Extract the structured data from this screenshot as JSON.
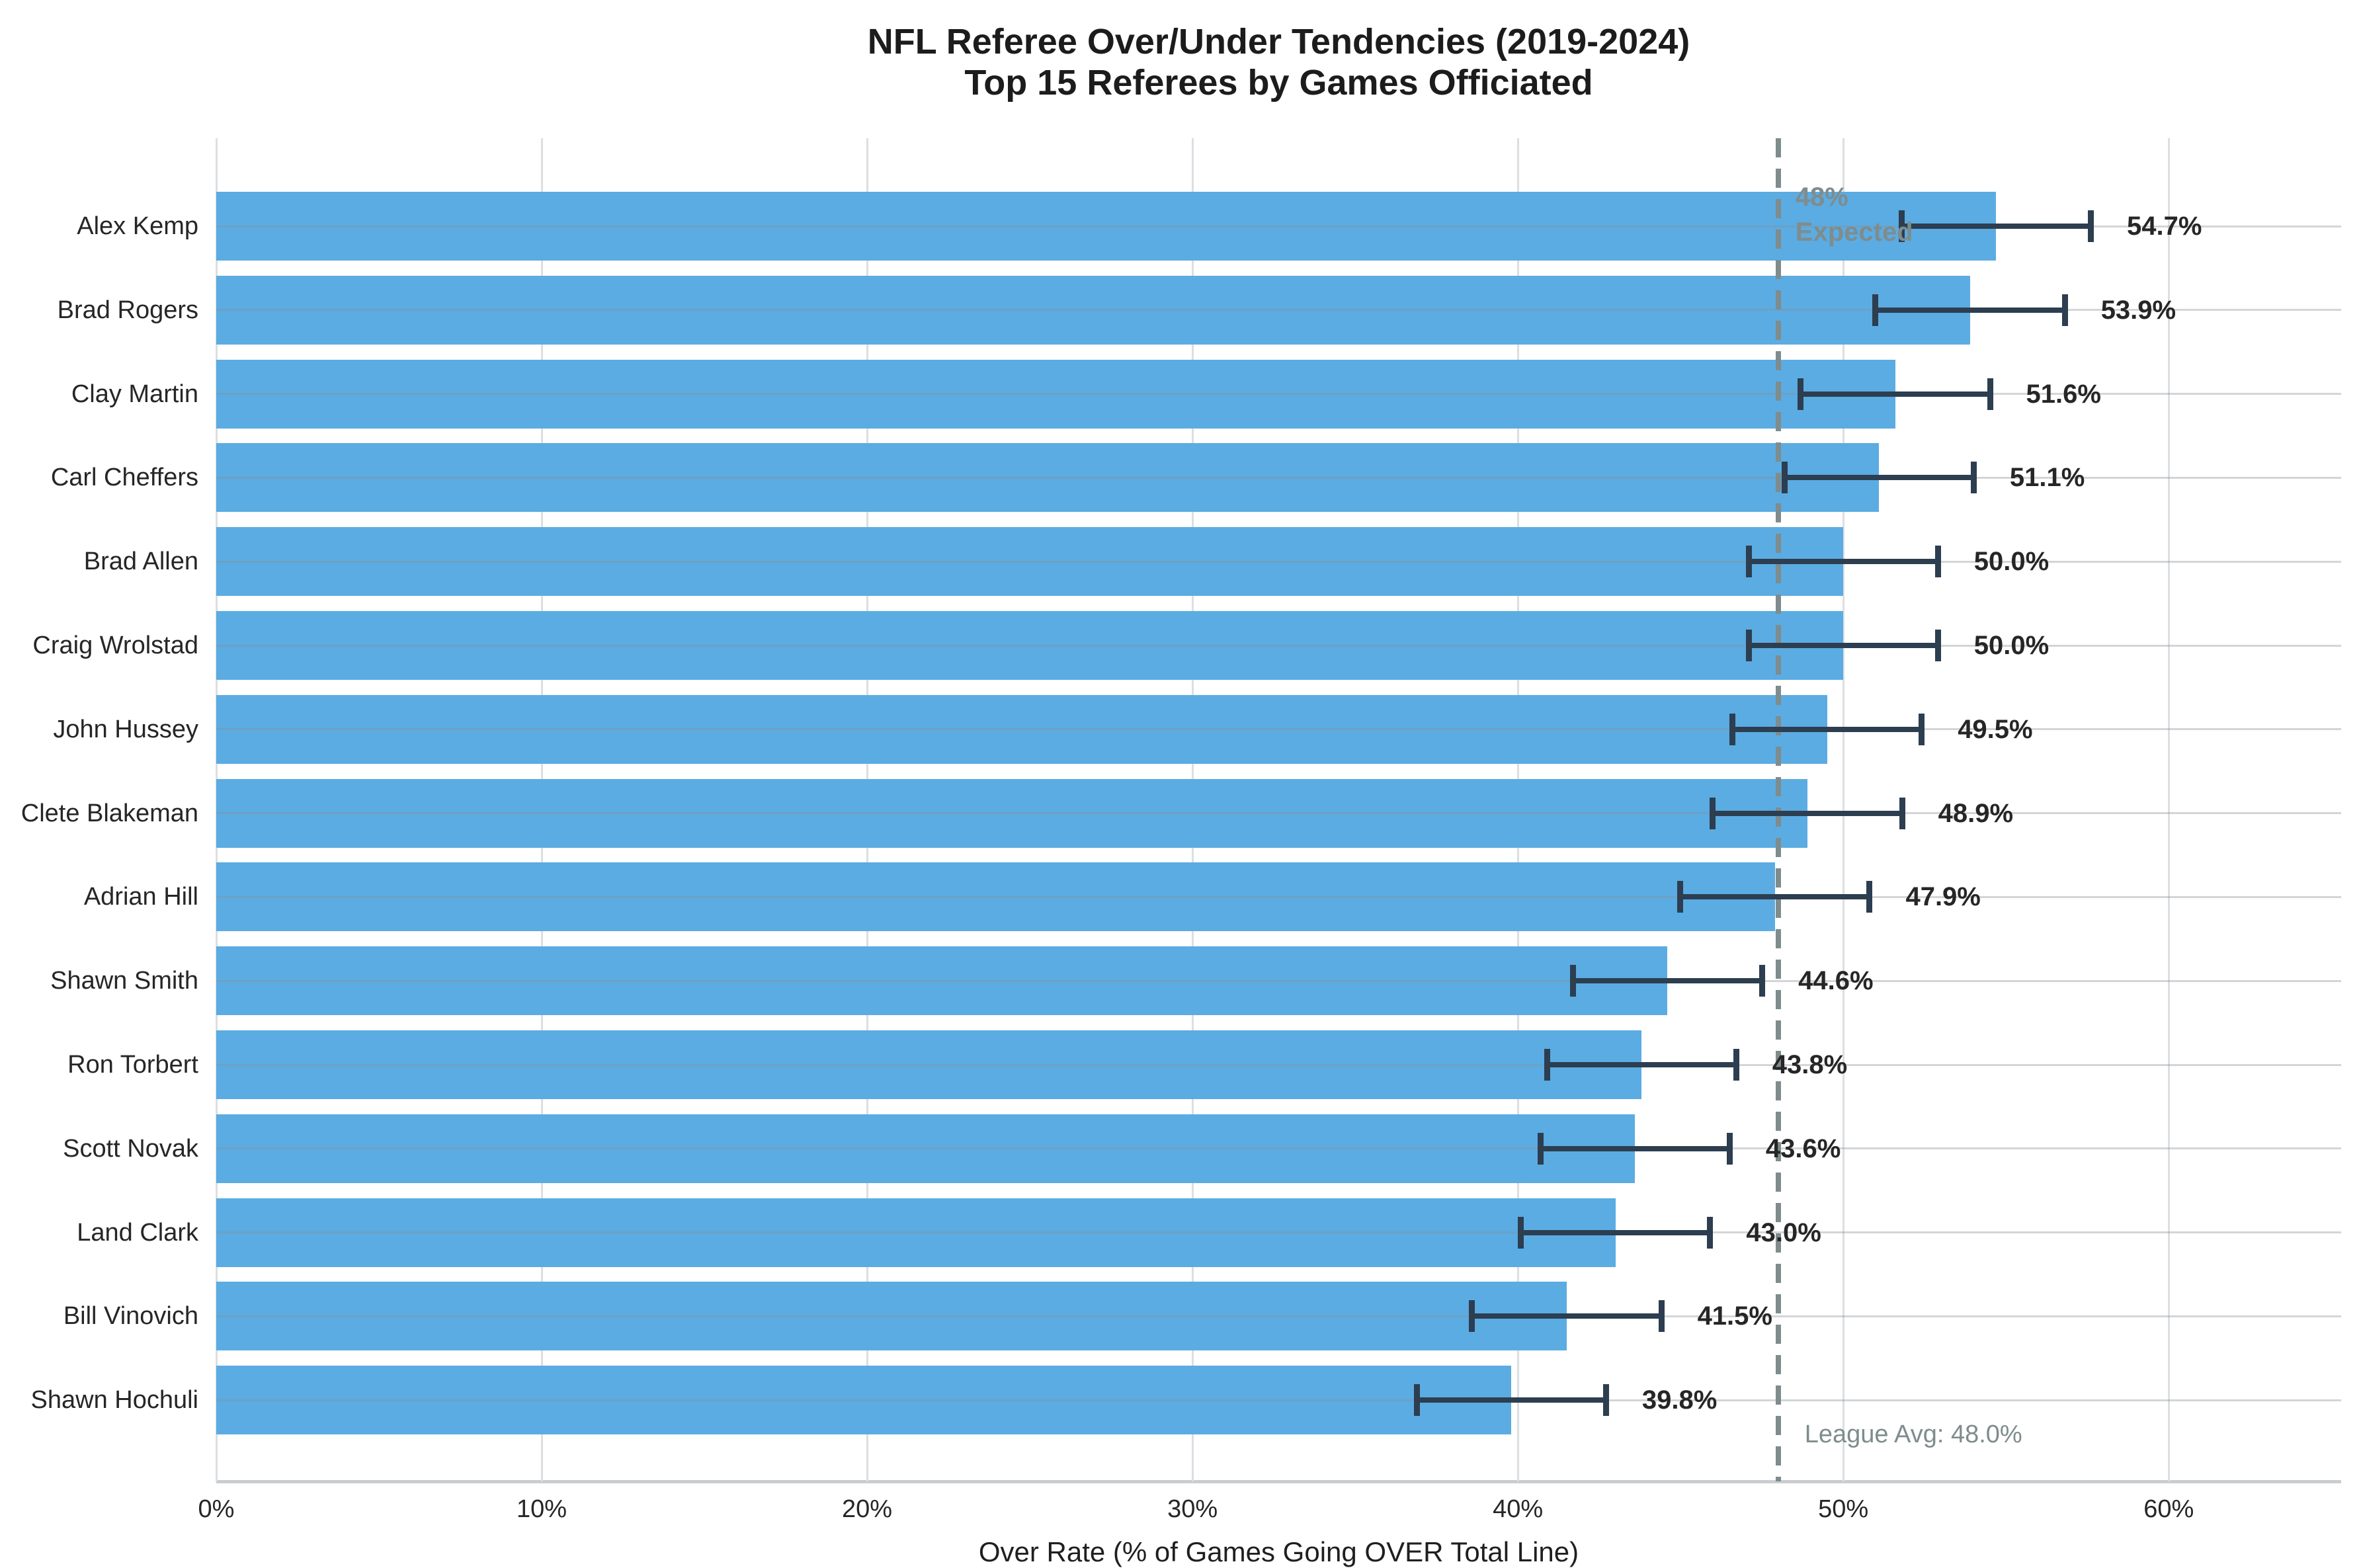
{
  "title": {
    "line1": "NFL Referee Over/Under Tendencies (2019-2024)",
    "line2": "Top 15 Referees by Games Officiated"
  },
  "chart_data": {
    "type": "bar",
    "orientation": "horizontal",
    "title": "NFL Referee Over/Under Tendencies (2019-2024)",
    "subtitle": "Top 15 Referees by Games Officiated",
    "categories": [
      "Alex Kemp",
      "Brad Rogers",
      "Clay Martin",
      "Carl Cheffers",
      "Brad Allen",
      "Craig Wrolstad",
      "John Hussey",
      "Clete Blakeman",
      "Adrian Hill",
      "Shawn Smith",
      "Ron Torbert",
      "Scott Novak",
      "Land Clark",
      "Bill Vinovich",
      "Shawn Hochuli"
    ],
    "values": [
      54.7,
      53.9,
      51.6,
      51.1,
      50.0,
      50.0,
      49.5,
      48.9,
      47.9,
      44.6,
      43.8,
      43.6,
      43.0,
      41.5,
      39.8
    ],
    "value_labels": [
      "54.7%",
      "53.9%",
      "51.6%",
      "51.1%",
      "50.0%",
      "50.0%",
      "49.5%",
      "48.9%",
      "47.9%",
      "44.6%",
      "43.8%",
      "43.6%",
      "43.0%",
      "41.5%",
      "39.8%"
    ],
    "error_margin": 3.0,
    "xlabel": "Over Rate (% of Games Going OVER Total Line)",
    "x_ticks": [
      {
        "value": 0,
        "label": "0%"
      },
      {
        "value": 10,
        "label": "10%"
      },
      {
        "value": 20,
        "label": "20%"
      },
      {
        "value": 30,
        "label": "30%"
      },
      {
        "value": 40,
        "label": "40%"
      },
      {
        "value": 50,
        "label": "50%"
      },
      {
        "value": 60,
        "label": "60%"
      }
    ],
    "xlim": [
      0,
      65.3
    ],
    "grid": true,
    "reference_line": {
      "value": 48.0,
      "annotation_line1": "48%",
      "annotation_line2": "Expected",
      "league_avg_label": "League Avg: 48.0%"
    },
    "colors": {
      "bar": "#5BACE2",
      "error_bar": "#2C3E50",
      "reference_line": "#7f8c8d",
      "annotation_text": "#7f8c8d",
      "value_label_text": "#262626",
      "axis_text": "#262626",
      "gridline": "#dcdfe2",
      "background": "#ffffff"
    }
  }
}
